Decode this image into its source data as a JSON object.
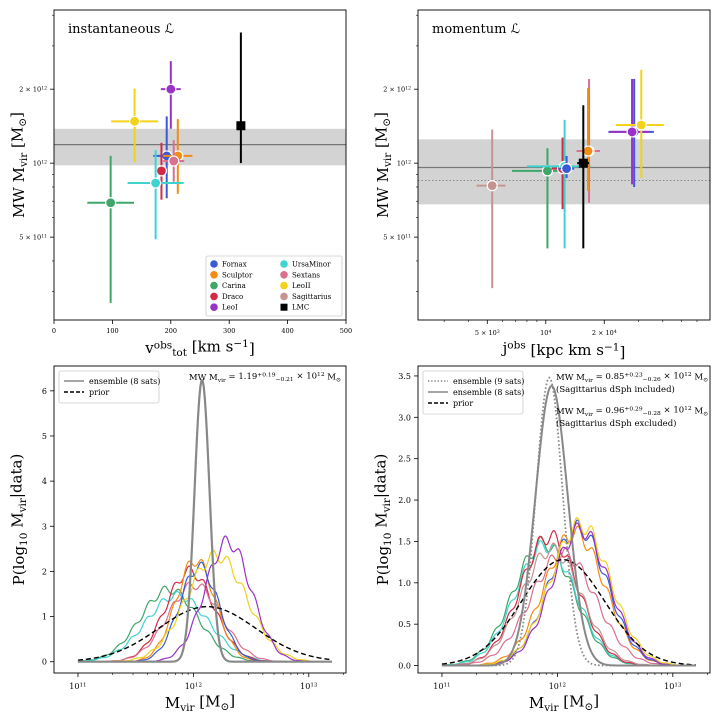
{
  "colors": {
    "Fornax": "#3b5bd6",
    "Sculptor": "#f28c14",
    "Carina": "#3fa66a",
    "Draco": "#d42a46",
    "LeoI": "#9a32c8",
    "UrsaMinor": "#3fd3cf",
    "Sextans": "#d97090",
    "LeoII": "#f2d21a",
    "Sagittarius": "#c49490",
    "LMC": "#000000",
    "band": "#d3d3d3",
    "ensemble_line": "#888888"
  },
  "chart_data": [
    {
      "id": "a",
      "type": "scatter",
      "title": "instantaneous ℒ",
      "xlabel": "v",
      "xlabel_sup": "obs",
      "xlabel_sub": "tot",
      "xlabel_unit": " [km s",
      "xlabel_unit_exp": "−1",
      "xlabel_unit_end": "]",
      "ylabel": "MW M",
      "ylabel_sub": "vir",
      "ylabel_unit": " [M",
      "ylabel_unit_sub": "⊙",
      "ylabel_unit_end": "]",
      "x_scale": "linear",
      "xlim": [
        0,
        500
      ],
      "y_scale": "log",
      "ylim": [
        230000000000.0,
        4200000000000.0
      ],
      "xticks": [
        "0",
        "100",
        "200",
        "300",
        "400",
        "500"
      ],
      "xtick_values": [
        0,
        100,
        200,
        300,
        400,
        500
      ],
      "yticks": [
        {
          "value": 500000000000.0,
          "mant": "5 × 10",
          "exp": "11"
        },
        {
          "value": 1000000000000.0,
          "mant": "10",
          "exp": "12"
        },
        {
          "value": 2000000000000.0,
          "mant": "2 × 10",
          "exp": "12"
        }
      ],
      "band": {
        "median": 1190000000000.0,
        "low": 980000000000.0,
        "high": 1380000000000.0
      },
      "points": [
        {
          "name": "Fornax",
          "x": 193,
          "y": 1070000000000.0,
          "xerr": [
            23,
            23
          ],
          "yerr": [
            350000000000.0,
            480000000000.0
          ]
        },
        {
          "name": "Sculptor",
          "x": 212,
          "y": 1070000000000.0,
          "xerr": [
            25,
            25
          ],
          "yerr": [
            320000000000.0,
            440000000000.0
          ]
        },
        {
          "name": "Carina",
          "x": 97,
          "y": 690000000000.0,
          "xerr": [
            40,
            40
          ],
          "yerr": [
            420000000000.0,
            380000000000.0
          ]
        },
        {
          "name": "Draco",
          "x": 184,
          "y": 930000000000.0,
          "xerr": [
            10,
            10
          ],
          "yerr": [
            220000000000.0,
            280000000000.0
          ]
        },
        {
          "name": "LeoI",
          "x": 200,
          "y": 2000000000000.0,
          "xerr": [
            17,
            17
          ],
          "yerr": [
            620000000000.0,
            600000000000.0
          ]
        },
        {
          "name": "UrsaMinor",
          "x": 174,
          "y": 830000000000.0,
          "xerr": [
            48,
            48
          ],
          "yerr": [
            340000000000.0,
            300000000000.0
          ]
        },
        {
          "name": "Sextans",
          "x": 205,
          "y": 1020000000000.0,
          "xerr": [
            18,
            18
          ],
          "yerr": [
            180000000000.0,
            220000000000.0
          ]
        },
        {
          "name": "LeoII",
          "x": 138,
          "y": 1480000000000.0,
          "xerr": [
            40,
            40
          ],
          "yerr": [
            470000000000.0,
            530000000000.0
          ]
        },
        {
          "name": "LMC",
          "x": 320,
          "y": 1420000000000.0,
          "xerr": [
            0,
            0
          ],
          "yerr": [
            420000000000.0,
            1980000000000.0
          ],
          "marker": "square"
        }
      ],
      "legend": {
        "position": "lower-right",
        "columns": [
          [
            "Fornax",
            "Sculptor",
            "Carina",
            "Draco",
            "LeoI"
          ],
          [
            "UrsaMinor",
            "Sextans",
            "LeoII",
            "Sagittarius",
            "LMC"
          ]
        ]
      }
    },
    {
      "id": "b",
      "type": "scatter",
      "title": "momentum ℒ",
      "xlabel": "j",
      "xlabel_sup": "obs",
      "xlabel_unit": " [kpc km s",
      "xlabel_unit_exp": "−1",
      "xlabel_unit_end": "]",
      "ylabel": "MW M",
      "ylabel_sub": "vir",
      "ylabel_unit": " [M",
      "ylabel_unit_sub": "⊙",
      "ylabel_unit_end": "]",
      "x_scale": "log",
      "xlim": [
        2200,
        70000
      ],
      "y_scale": "log",
      "ylim": [
        230000000000.0,
        4200000000000.0
      ],
      "xticks": [
        {
          "value": 5000,
          "mant": "5 × 10",
          "exp": "3"
        },
        {
          "value": 10000,
          "mant": "10",
          "exp": "4"
        },
        {
          "value": 20000,
          "mant": "2 × 10",
          "exp": "4"
        }
      ],
      "yticks": [
        {
          "value": 500000000000.0,
          "mant": "5 × 10",
          "exp": "11"
        },
        {
          "value": 1000000000000.0,
          "mant": "10",
          "exp": "12"
        },
        {
          "value": 2000000000000.0,
          "mant": "2 × 10",
          "exp": "12"
        }
      ],
      "band": {
        "median": 960000000000.0,
        "low": 680000000000.0,
        "high": 1250000000000.0,
        "median_dotted": 850000000000.0
      },
      "points": [
        {
          "name": "Carina",
          "x": 10200,
          "y": 930000000000.0,
          "xerr": [
            3500,
            3200
          ],
          "yerr": [
            480000000000.0,
            220000000000.0
          ]
        },
        {
          "name": "Draco",
          "x": 12200,
          "y": 950000000000.0,
          "xerr": [
            1500,
            1500
          ],
          "yerr": [
            300000000000.0,
            320000000000.0
          ]
        },
        {
          "name": "UrsaMinor",
          "x": 12500,
          "y": 970000000000.0,
          "xerr": [
            4500,
            4500
          ],
          "yerr": [
            520000000000.0,
            530000000000.0
          ]
        },
        {
          "name": "Fornax",
          "x": 12800,
          "y": 950000000000.0,
          "xerr": [
            1200,
            1200
          ],
          "yerr": [
            80000000000.0,
            120000000000.0
          ]
        },
        {
          "name": "Sextans",
          "x": 16700,
          "y": 1120000000000.0,
          "xerr": [
            2300,
            2300
          ],
          "yerr": [
            430000000000.0,
            1080000000000.0
          ]
        },
        {
          "name": "Sculptor",
          "x": 16500,
          "y": 1120000000000.0,
          "xerr": [
            1200,
            1200
          ],
          "yerr": [
            350000000000.0,
            900000000000.0
          ]
        },
        {
          "name": "Sagittarius",
          "x": 5300,
          "y": 810000000000.0,
          "xerr": [
            900,
            900
          ],
          "yerr": [
            500000000000.0,
            560000000000.0
          ]
        },
        {
          "name": "LMC",
          "x": 15600,
          "y": 1000000000000.0,
          "xerr": [
            1100,
            1100
          ],
          "yerr": [
            550000000000.0,
            720000000000.0
          ],
          "marker": "square"
        },
        {
          "name": "Fornax",
          "x": 28500,
          "y": 1340000000000.0,
          "xerr": [
            7500,
            7500
          ],
          "yerr": [
            540000000000.0,
            860000000000.0
          ]
        },
        {
          "name": "LeoI",
          "x": 27800,
          "y": 1340000000000.0,
          "xerr": [
            6500,
            6500
          ],
          "yerr": [
            520000000000.0,
            860000000000.0
          ]
        },
        {
          "name": "LeoII",
          "x": 31000,
          "y": 1430000000000.0,
          "xerr": [
            8000,
            9500
          ],
          "yerr": [
            560000000000.0,
            970000000000.0
          ]
        }
      ]
    },
    {
      "id": "c",
      "type": "line",
      "xlabel": "M",
      "xlabel_sub": "vir",
      "xlabel_unit": " [M",
      "xlabel_unit_sub": "⊙",
      "xlabel_unit_end": "]",
      "ylabel": "P(log",
      "ylabel_sub": "10",
      "ylabel_rest": " M",
      "ylabel_sub2": "vir",
      "ylabel_end": "|data)",
      "x_scale": "log",
      "xlim": [
        62000000000.0,
        21000000000000.0
      ],
      "ylim": [
        -0.25,
        6.55
      ],
      "xticks": [
        {
          "value": 100000000000.0,
          "mant": "10",
          "exp": "11"
        },
        {
          "value": 1000000000000.0,
          "mant": "10",
          "exp": "12"
        },
        {
          "value": 10000000000000.0,
          "mant": "10",
          "exp": "13"
        }
      ],
      "yticks": [
        "0",
        "1",
        "2",
        "3",
        "4",
        "5",
        "6"
      ],
      "ytick_values": [
        0,
        1,
        2,
        3,
        4,
        5,
        6
      ],
      "annotation": {
        "text": "MW M",
        "sub": "vir",
        "eq": " = 1.19",
        "sup": "+0.19",
        "subb": "−0.21",
        "tail": " × 10",
        "exp": "12",
        "unit": " M",
        "unit_sub": "⊙"
      },
      "legend": [
        {
          "label": "ensemble (8 sats)",
          "style": "solid"
        },
        {
          "label": "prior",
          "style": "dashed"
        }
      ],
      "series": [
        {
          "name": "ensemble (8 sats)",
          "color": "ensemble",
          "mu": 12.075,
          "sigma": 0.065,
          "amp": 6.25,
          "width": 2.2
        },
        {
          "name": "prior",
          "color": "LMC",
          "mu": 12.12,
          "sigma": 0.42,
          "amp": 1.22,
          "dash": true,
          "width": 1.4
        },
        {
          "name": "Carina",
          "color": "Carina",
          "mu": 11.79,
          "sigma": 0.25,
          "amp": 1.6
        },
        {
          "name": "UrsaMinor",
          "color": "UrsaMinor",
          "mu": 11.86,
          "sigma": 0.27,
          "amp": 1.47
        },
        {
          "name": "Draco",
          "color": "Draco",
          "mu": 11.97,
          "sigma": 0.21,
          "amp": 2.0
        },
        {
          "name": "Sextans",
          "color": "Sextans",
          "mu": 12.01,
          "sigma": 0.23,
          "amp": 1.7
        },
        {
          "name": "Sculptor",
          "color": "Sculptor",
          "mu": 12.02,
          "sigma": 0.17,
          "amp": 2.25
        },
        {
          "name": "Fornax",
          "color": "Fornax",
          "mu": 12.05,
          "sigma": 0.17,
          "amp": 2.1
        },
        {
          "name": "LeoII",
          "color": "LeoII",
          "mu": 12.2,
          "sigma": 0.26,
          "amp": 2.35
        },
        {
          "name": "LeoI",
          "color": "LeoI",
          "mu": 12.3,
          "sigma": 0.2,
          "amp": 2.65
        }
      ]
    },
    {
      "id": "d",
      "type": "line",
      "xlabel": "M",
      "xlabel_sub": "vir",
      "xlabel_unit": " [M",
      "xlabel_unit_sub": "⊙",
      "xlabel_unit_end": "]",
      "ylabel": "P(log",
      "ylabel_sub": "10",
      "ylabel_rest": " M",
      "ylabel_sub2": "vir",
      "ylabel_end": "|data)",
      "x_scale": "log",
      "xlim": [
        62000000000.0,
        21000000000000.0
      ],
      "ylim": [
        -0.09,
        3.62
      ],
      "xticks": [
        {
          "value": 100000000000.0,
          "mant": "10",
          "exp": "11"
        },
        {
          "value": 1000000000000.0,
          "mant": "10",
          "exp": "12"
        },
        {
          "value": 10000000000000.0,
          "mant": "10",
          "exp": "13"
        }
      ],
      "yticks": [
        "0.0",
        "0.5",
        "1.0",
        "1.5",
        "2.0",
        "2.5",
        "3.0",
        "3.5"
      ],
      "ytick_values": [
        0,
        0.5,
        1,
        1.5,
        2,
        2.5,
        3,
        3.5
      ],
      "annotations": [
        {
          "text": "MW M",
          "sub": "vir",
          "eq": " = 0.85",
          "sup": "+0.23",
          "subb": "−0.26",
          "tail": " × 10",
          "exp": "12",
          "unit": " M",
          "unit_sub": "⊙",
          "note": "(Sagittarius dSph included)"
        },
        {
          "text": "MW M",
          "sub": "vir",
          "eq": " = 0.96",
          "sup": "+0.29",
          "subb": "−0.28",
          "tail": " × 10",
          "exp": "12",
          "unit": " M",
          "unit_sub": "⊙",
          "note": "(Sagittarius dSph excluded)"
        }
      ],
      "legend": [
        {
          "label": "ensemble (9 sats)",
          "style": "dotted"
        },
        {
          "label": "ensemble (8 sats)",
          "style": "solid"
        },
        {
          "label": "prior",
          "style": "dashed"
        }
      ],
      "series": [
        {
          "name": "ensemble (9 sats)",
          "color": "ensemble",
          "mu": 11.93,
          "sigma": 0.115,
          "amp": 3.48,
          "dot": true,
          "width": 1.8
        },
        {
          "name": "ensemble (8 sats)",
          "color": "ensemble",
          "mu": 11.95,
          "sigma": 0.14,
          "amp": 3.38,
          "width": 2.0
        },
        {
          "name": "prior",
          "color": "LMC",
          "mu": 12.05,
          "sigma": 0.36,
          "amp": 1.28,
          "dash": true,
          "width": 1.4
        },
        {
          "name": "Carina",
          "color": "Carina",
          "mu": 11.88,
          "sigma": 0.26,
          "amp": 1.48
        },
        {
          "name": "UrsaMinor",
          "color": "UrsaMinor",
          "mu": 11.9,
          "sigma": 0.26,
          "amp": 1.45
        },
        {
          "name": "Draco",
          "color": "Draco",
          "mu": 11.93,
          "sigma": 0.25,
          "amp": 1.56
        },
        {
          "name": "Sagittarius",
          "color": "Sagittarius",
          "mu": 11.95,
          "sigma": 0.26,
          "amp": 1.4
        },
        {
          "name": "Sextans",
          "color": "Sextans",
          "mu": 12.05,
          "sigma": 0.28,
          "amp": 1.35
        },
        {
          "name": "Sculptor",
          "color": "Sculptor",
          "mu": 12.15,
          "sigma": 0.26,
          "amp": 1.6
        },
        {
          "name": "Fornax",
          "color": "Fornax",
          "mu": 12.18,
          "sigma": 0.25,
          "amp": 1.66
        },
        {
          "name": "LeoI",
          "color": "LeoI",
          "mu": 12.2,
          "sigma": 0.25,
          "amp": 1.64
        },
        {
          "name": "LeoII",
          "color": "LeoII",
          "mu": 12.2,
          "sigma": 0.26,
          "amp": 1.7
        }
      ]
    }
  ]
}
